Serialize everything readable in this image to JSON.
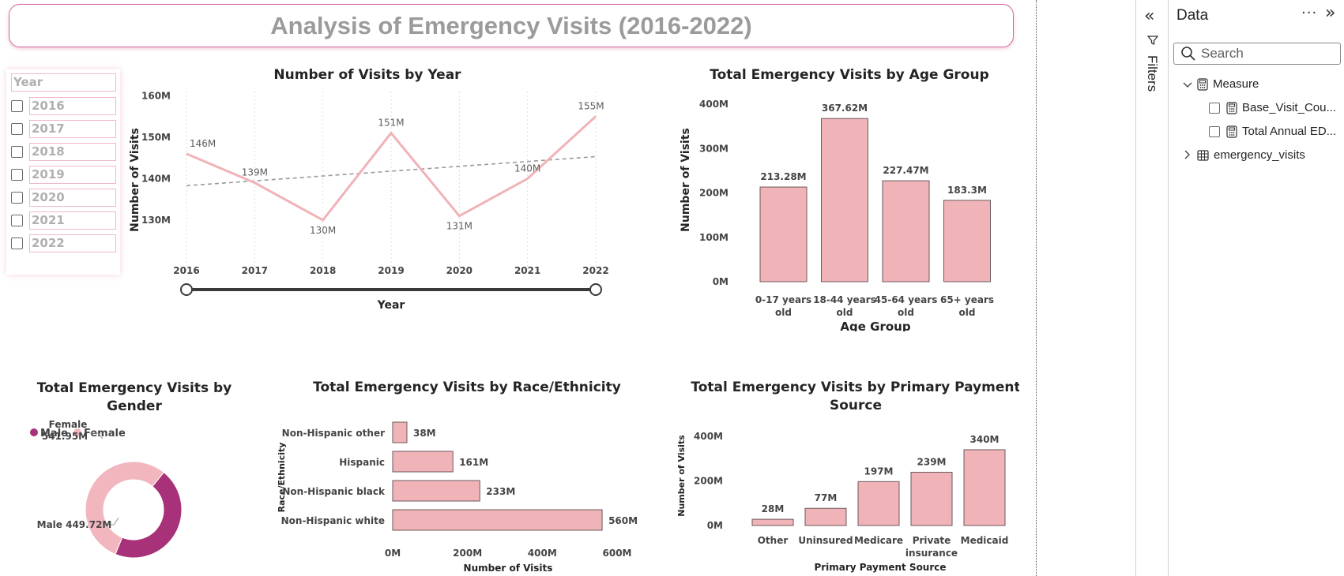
{
  "report": {
    "title": "Analysis of Emergency Visits (2016-2022)"
  },
  "slicer": {
    "header": "Year",
    "items": [
      "2016",
      "2017",
      "2018",
      "2019",
      "2020",
      "2021",
      "2022"
    ]
  },
  "colors": {
    "bar_pink": "#f0b3b8",
    "bar_stroke": "#6b5a5c",
    "line_pink": "#f0b3b8",
    "male": "#a83279",
    "female": "#f2b6bf",
    "trend": "#9a9a9a"
  },
  "chart_data": [
    {
      "id": "visits_by_year",
      "type": "line",
      "title": "Number of Visits by Year",
      "xlabel": "Year",
      "ylabel": "Number of Visits",
      "x": [
        2016,
        2017,
        2018,
        2019,
        2020,
        2021,
        2022
      ],
      "values": [
        146,
        139,
        130,
        151,
        131,
        140,
        155
      ],
      "data_labels": [
        "146M",
        "139M",
        "130M",
        "151M",
        "131M",
        "140M",
        "155M"
      ],
      "y_ticks": [
        "130M",
        "140M",
        "150M",
        "160M"
      ],
      "y_tick_values": [
        130,
        140,
        150,
        160
      ],
      "ylim": [
        126,
        161
      ],
      "trend_line": [
        138.3,
        145.3
      ],
      "x_gridlines": true,
      "range_slider": [
        2016,
        2022
      ]
    },
    {
      "id": "visits_by_age",
      "type": "bar",
      "title": "Total Emergency Visits by Age Group",
      "xlabel": "Age Group",
      "ylabel": "Number of Visits",
      "categories": [
        [
          "0-17 years",
          "old"
        ],
        [
          "18-44 years",
          "old"
        ],
        [
          "45-64 years",
          "old"
        ],
        [
          "65+ years",
          "old"
        ]
      ],
      "values": [
        213.28,
        367.62,
        227.47,
        183.3
      ],
      "data_labels": [
        "213.28M",
        "367.62M",
        "227.47M",
        "183.3M"
      ],
      "y_ticks": [
        "0M",
        "100M",
        "200M",
        "300M",
        "400M"
      ],
      "y_tick_values": [
        0,
        100,
        200,
        300,
        400
      ],
      "ylim": [
        0,
        400
      ]
    },
    {
      "id": "visits_by_gender",
      "type": "pie",
      "title": [
        "Total Emergency Visits by",
        "Gender"
      ],
      "legend": [
        "Male",
        "Female"
      ],
      "categories": [
        "Male",
        "Female"
      ],
      "values": [
        449.72,
        541.95
      ],
      "data_labels": [
        [
          "Male 449.72M"
        ],
        [
          "Female",
          "541.95M"
        ]
      ],
      "legend_position": "top-left"
    },
    {
      "id": "visits_by_race",
      "type": "bar",
      "orientation": "horizontal",
      "title": "Total Emergency Visits by Race/Ethnicity",
      "xlabel": "Number of Visits",
      "ylabel": "Race/Ethnicity",
      "categories": [
        "Non-Hispanic other",
        "Hispanic",
        "Non-Hispanic black",
        "Non-Hispanic white"
      ],
      "values": [
        38,
        161,
        233,
        560
      ],
      "data_labels": [
        "38M",
        "161M",
        "233M",
        "560M"
      ],
      "x_ticks": [
        "0M",
        "200M",
        "400M",
        "600M"
      ],
      "x_tick_values": [
        0,
        200,
        400,
        600
      ],
      "xlim": [
        0,
        600
      ]
    },
    {
      "id": "visits_by_payment",
      "type": "bar",
      "title": [
        "Total Emergency Visits by Primary Payment",
        "Source"
      ],
      "xlabel": "Primary Payment Source",
      "ylabel": "Number of Visits",
      "categories": [
        [
          "Other"
        ],
        [
          "Uninsured"
        ],
        [
          "Medicare"
        ],
        [
          "Private",
          "insurance"
        ],
        [
          "Medicaid"
        ]
      ],
      "values": [
        28,
        77,
        197,
        239,
        340
      ],
      "data_labels": [
        "28M",
        "77M",
        "197M",
        "239M",
        "340M"
      ],
      "y_ticks": [
        "0M",
        "200M",
        "400M"
      ],
      "y_tick_values": [
        0,
        200,
        400
      ],
      "ylim": [
        0,
        400
      ]
    }
  ],
  "filters_pane": {
    "label": "Filters"
  },
  "data_pane": {
    "title": "Data",
    "more": "···",
    "search_placeholder": "Search",
    "tree": [
      {
        "label": "Measure",
        "expanded": true,
        "icon": "calculator-icon"
      },
      {
        "label": "Base_Visit_Cou...",
        "icon": "calculator-icon"
      },
      {
        "label": "Total Annual ED...",
        "icon": "calculator-icon"
      },
      {
        "label": "emergency_visits",
        "expanded": false,
        "icon": "table-icon"
      }
    ]
  }
}
